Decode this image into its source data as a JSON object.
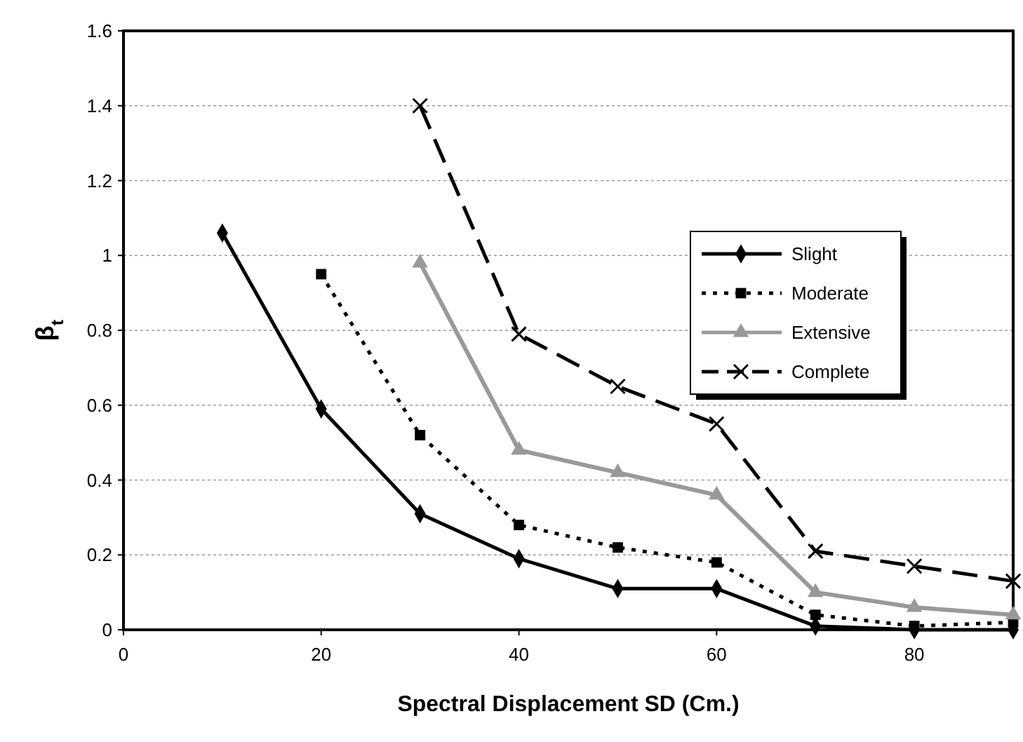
{
  "chart_data": {
    "type": "line",
    "xlabel": "Spectral Displacement SD (Cm.)",
    "ylabel": "β$_{t}$",
    "x": [
      10,
      20,
      30,
      40,
      50,
      60,
      70,
      80,
      90
    ],
    "series": [
      {
        "name": "Slight",
        "color": "#000000",
        "marker": "diamond",
        "line_style": "solid",
        "values": [
          1.06,
          0.59,
          0.31,
          0.19,
          0.11,
          0.11,
          0.01,
          0.0,
          0.0
        ]
      },
      {
        "name": "Moderate",
        "color": "#000000",
        "marker": "square",
        "line_style": "dotted",
        "values": [
          null,
          0.95,
          0.52,
          0.28,
          0.22,
          0.18,
          0.04,
          0.01,
          0.02
        ]
      },
      {
        "name": "Extensive",
        "color": "#999999",
        "marker": "triangle",
        "line_style": "solid",
        "values": [
          null,
          null,
          0.98,
          0.48,
          0.42,
          0.36,
          0.1,
          0.06,
          0.04
        ]
      },
      {
        "name": "Complete",
        "color": "#000000",
        "marker": "cross",
        "line_style": "dashed",
        "values": [
          null,
          null,
          1.4,
          0.79,
          0.65,
          0.55,
          0.21,
          0.17,
          0.13
        ]
      }
    ],
    "xlim": [
      0,
      90
    ],
    "xticks": [
      0,
      20,
      40,
      60,
      80
    ],
    "ylim": [
      0,
      1.6
    ],
    "yticks": [
      0,
      0.2,
      0.4,
      0.6,
      0.8,
      1,
      1.2,
      1.4,
      1.6
    ],
    "grid": "y",
    "legend": "right"
  }
}
